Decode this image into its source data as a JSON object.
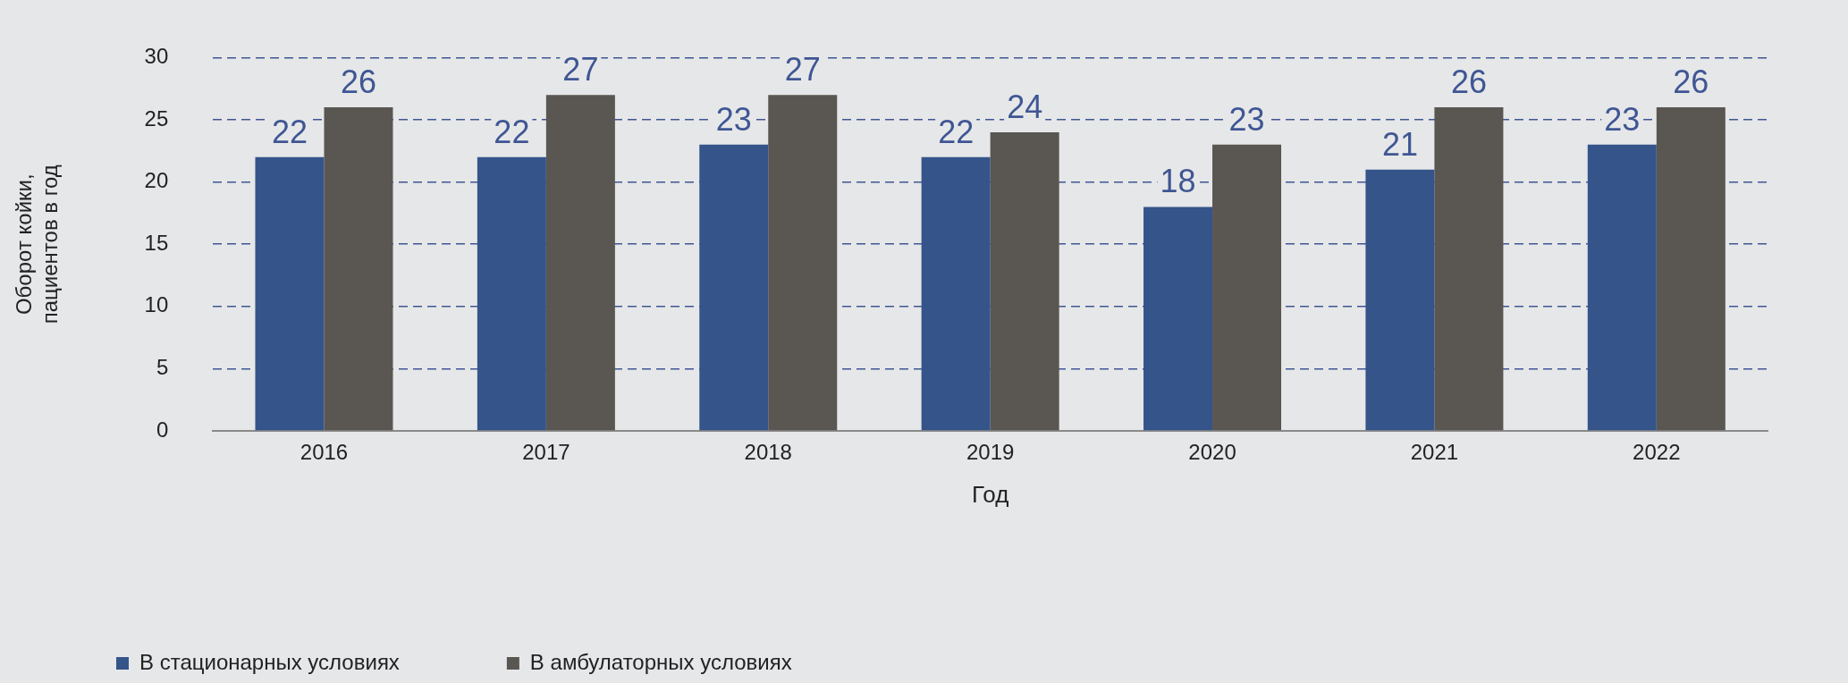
{
  "chart_data": {
    "type": "bar",
    "xlabel": "Год",
    "ylabel": "Оборот койки,\nпациентов в год",
    "categories": [
      "2016",
      "2017",
      "2018",
      "2019",
      "2020",
      "2021",
      "2022"
    ],
    "series": [
      {
        "name": "В стационарных условиях",
        "color": "#34548a",
        "values": [
          22,
          22,
          23,
          22,
          18,
          21,
          23
        ]
      },
      {
        "name": "В амбулаторных условиях",
        "color": "#5a5651",
        "values": [
          26,
          27,
          27,
          24,
          23,
          26,
          26
        ]
      }
    ],
    "ylim": [
      0,
      30
    ],
    "yticks": [
      0,
      5,
      10,
      15,
      20,
      25,
      30
    ],
    "grid": "y",
    "legend": "bottom left",
    "data_labels": true
  }
}
